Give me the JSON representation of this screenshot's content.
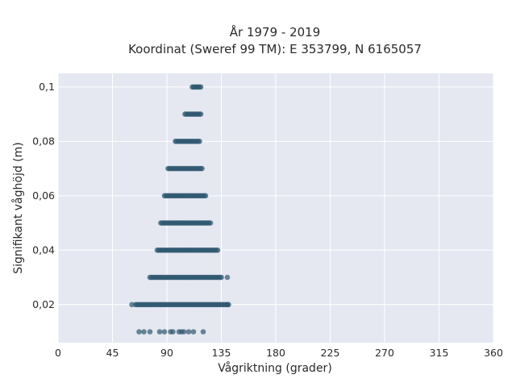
{
  "chart_data": {
    "type": "scatter",
    "title": "År 1979 - 2019",
    "subtitle": "Koordinat (Sweref 99 TM): E 353799, N 6165057",
    "xlabel": "Vågriktning (grader)",
    "ylabel": "Signifikant våghöjd (m)",
    "xlim": [
      0,
      360
    ],
    "ylim": [
      0.006,
      0.105
    ],
    "x_ticks": [
      0,
      45,
      90,
      135,
      180,
      225,
      270,
      315,
      360
    ],
    "x_tick_labels": [
      "0",
      "45",
      "90",
      "135",
      "180",
      "225",
      "270",
      "315",
      "360"
    ],
    "y_ticks": [
      0.02,
      0.04,
      0.06,
      0.08,
      0.1
    ],
    "y_tick_labels": [
      "0,02",
      "0,04",
      "0,06",
      "0,08",
      "0,1"
    ],
    "grid": true,
    "point_color": "#2f5870",
    "background_color": "#e5e8f1",
    "rows": [
      {
        "y": 0.01,
        "x_dense": [],
        "x_extra": [
          67,
          71,
          76,
          84,
          88,
          93,
          95,
          100,
          102,
          104,
          108,
          112,
          120
        ]
      },
      {
        "y": 0.02,
        "x_dense": [
          64,
          141
        ],
        "x_extra": [
          61,
          140
        ]
      },
      {
        "y": 0.03,
        "x_dense": [
          76,
          135
        ],
        "x_extra": [
          140
        ]
      },
      {
        "y": 0.04,
        "x_dense": [
          82,
          132
        ],
        "x_extra": []
      },
      {
        "y": 0.05,
        "x_dense": [
          85,
          126
        ],
        "x_extra": []
      },
      {
        "y": 0.06,
        "x_dense": [
          88,
          122
        ],
        "x_extra": []
      },
      {
        "y": 0.07,
        "x_dense": [
          91,
          119
        ],
        "x_extra": []
      },
      {
        "y": 0.08,
        "x_dense": [
          97,
          117
        ],
        "x_extra": []
      },
      {
        "y": 0.09,
        "x_dense": [
          105,
          118
        ],
        "x_extra": []
      },
      {
        "y": 0.1,
        "x_dense": [
          111,
          118
        ],
        "x_extra": []
      }
    ]
  }
}
